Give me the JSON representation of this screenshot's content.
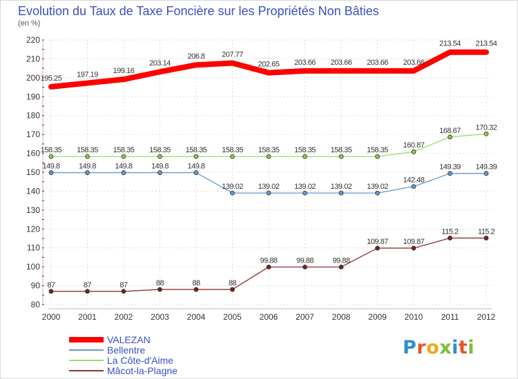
{
  "chart_data": {
    "type": "line",
    "title": "Evolution du Taux de Taxe Foncière sur les Propriétés Non Bâties",
    "ylabel": "(en %)",
    "xlabel": "",
    "ylim": [
      80,
      220
    ],
    "yticks": [
      80,
      90,
      100,
      110,
      120,
      130,
      140,
      150,
      160,
      170,
      180,
      190,
      200,
      210,
      220
    ],
    "x": [
      "2000",
      "2001",
      "2002",
      "2003",
      "2004",
      "2005",
      "2006",
      "2007",
      "2008",
      "2009",
      "2010",
      "2011",
      "2012"
    ],
    "grid": true,
    "series": [
      {
        "name": "VALEZAN",
        "color": "#ff0000",
        "markers": false,
        "values": [
          195.25,
          197.19,
          199.16,
          203.14,
          206.8,
          207.77,
          202.65,
          203.66,
          203.66,
          203.66,
          203.66,
          213.54,
          213.54
        ],
        "labels": [
          "195.25",
          "197.19",
          "199.16",
          "203.14",
          "206.8",
          "207.77",
          "202.65",
          "203.66",
          "203.66",
          "203.66",
          "203.66",
          "213.54",
          "213.54"
        ]
      },
      {
        "name": "Bellentre",
        "color": "#6699cc",
        "marker_fill": "#5b9bd5",
        "markers": true,
        "values": [
          149.8,
          149.8,
          149.8,
          149.8,
          149.8,
          139.02,
          139.02,
          139.02,
          139.02,
          139.02,
          142.48,
          149.39,
          149.39
        ],
        "labels": [
          "149.8",
          "149.8",
          "149.8",
          "149.8",
          "149.8",
          "139.02",
          "139.02",
          "139.02",
          "139.02",
          "139.02",
          "142.48",
          "149.39",
          "149.39"
        ]
      },
      {
        "name": "La Côte-d'Aime",
        "color": "#99dd66",
        "marker_fill": "#88cc44",
        "markers": true,
        "values": [
          158.35,
          158.35,
          158.35,
          158.35,
          158.35,
          158.35,
          158.35,
          158.35,
          158.35,
          158.35,
          160.87,
          168.67,
          170.32
        ],
        "labels": [
          "158.35",
          "158.35",
          "158.35",
          "158.35",
          "158.35",
          "158.35",
          "158.35",
          "158.35",
          "158.35",
          "158.35",
          "160.87",
          "168.67",
          "170.32"
        ]
      },
      {
        "name": "Mâcot-la-Plagne",
        "color": "#8a3333",
        "marker_fill": "#7a1f1f",
        "markers": true,
        "values": [
          87,
          87,
          87,
          88,
          88,
          88,
          99.88,
          99.88,
          99.88,
          109.87,
          109.87,
          115.2,
          115.2
        ],
        "labels": [
          "87",
          "87",
          "87",
          "88",
          "88",
          "88",
          "99.88",
          "99.88",
          "99.88",
          "109.87",
          "109.87",
          "115.2",
          "115.2"
        ]
      }
    ],
    "legend": "bottom-left"
  },
  "brand": {
    "letters": [
      "P",
      "r",
      "o",
      "x",
      "i",
      "t",
      "i"
    ]
  },
  "colors": {
    "title": "#3a4fc4",
    "grid": "#dddddd",
    "axis_text": "#333333"
  }
}
